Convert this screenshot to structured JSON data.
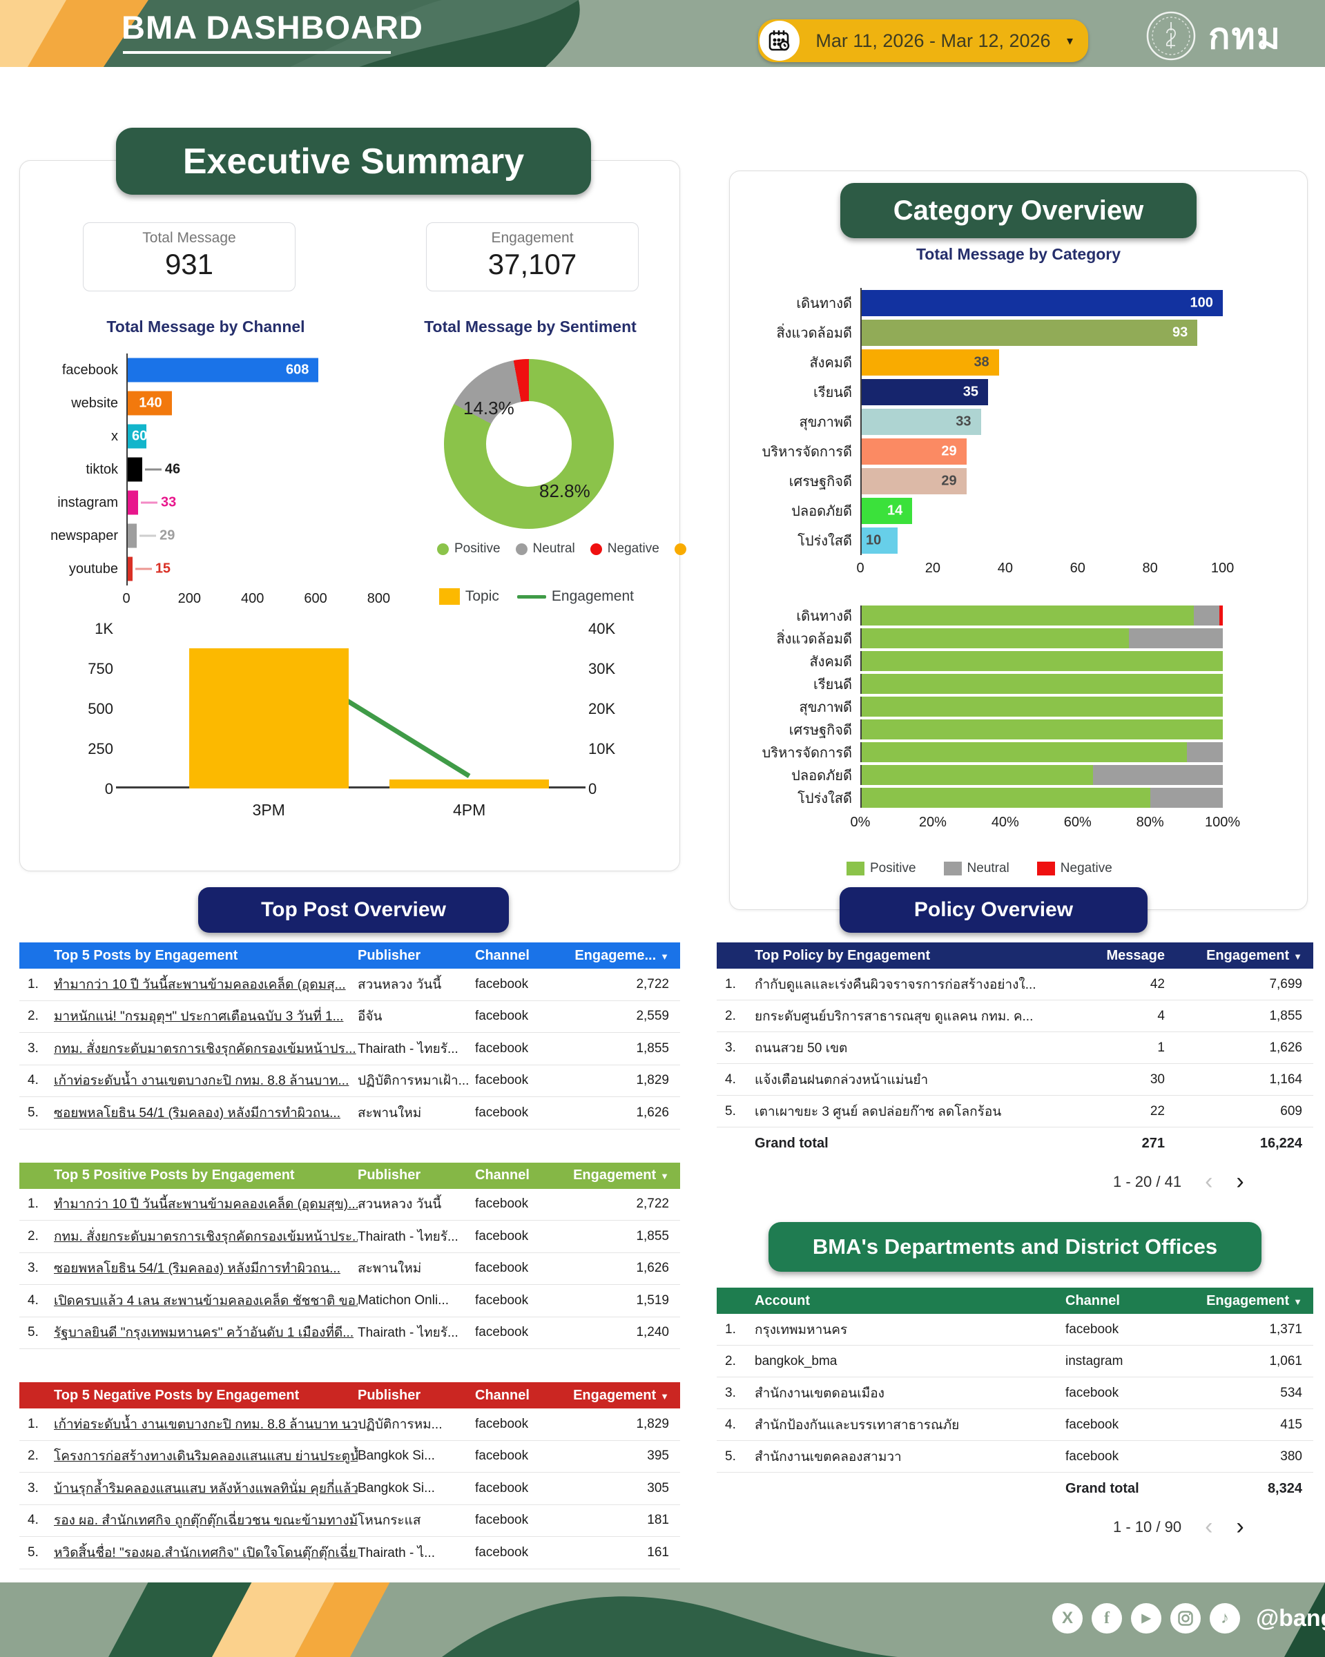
{
  "header": {
    "title": "BMA DASHBOARD",
    "date_range": "Mar 11, 2026 - Mar 12, 2026",
    "logo_text": "กทม"
  },
  "executive_summary": {
    "section_title": "Executive Summary",
    "stats": [
      {
        "label": "Total Message",
        "value": "931"
      },
      {
        "label": "Engagement",
        "value": "37,107"
      }
    ],
    "channel_chart": {
      "type": "bar",
      "title": "Total Message by Channel",
      "categories": [
        "facebook",
        "website",
        "x",
        "tiktok",
        "instagram",
        "newspaper",
        "youtube"
      ],
      "values": [
        608,
        140,
        60,
        46,
        33,
        29,
        15
      ],
      "colors": [
        "#1a73e8",
        "#f2790d",
        "#12b5cb",
        "#000000",
        "#e8168c",
        "#9e9e9e",
        "#d93025"
      ],
      "label_modes": [
        "in-white",
        "in-white",
        "in-white",
        "out",
        "out",
        "out",
        "out"
      ],
      "axis_max": 800,
      "ticks": [
        0,
        200,
        400,
        600,
        800
      ]
    },
    "sentiment_chart": {
      "type": "donut",
      "title": "Total Message by Sentiment",
      "labels": [
        "Positive",
        "Neutral",
        "Negative"
      ],
      "values_pct": [
        82.8,
        14.3,
        2.9
      ],
      "colors": [
        "#8bc34a",
        "#9e9e9e",
        "#ef1010"
      ],
      "shown_labels": {
        "positive": "82.8%",
        "neutral": "14.3%"
      },
      "extra_legend_color": "#f9ab00"
    },
    "hourly_chart": {
      "type": "combo",
      "legend": [
        {
          "label": "Topic",
          "color": "#fcb900",
          "kind": "bar"
        },
        {
          "label": "Engagement",
          "color": "#3f9b47",
          "kind": "line"
        }
      ],
      "x": [
        "3PM",
        "4PM"
      ],
      "topic_values": [
        875,
        56
      ],
      "engagement_values": [
        34000,
        3100
      ],
      "left_max": 1000,
      "right_max": 40000,
      "left_ticks": [
        "1K",
        "750",
        "500",
        "250",
        "0"
      ],
      "right_ticks": [
        "40K",
        "30K",
        "20K",
        "10K",
        "0"
      ]
    }
  },
  "category_overview": {
    "section_title": "Category Overview",
    "bar_chart": {
      "type": "bar",
      "title": "Total Message by Category",
      "categories": [
        "เดินทางดี",
        "สิ่งแวดล้อมดี",
        "สังคมดี",
        "เรียนดี",
        "สุขภาพดี",
        "บริหารจัดการดี",
        "เศรษฐกิจดี",
        "ปลอดภัยดี",
        "โปร่งใสดี"
      ],
      "values": [
        100,
        93,
        38,
        35,
        33,
        29,
        29,
        14,
        10
      ],
      "colors": [
        "#1232a0",
        "#91ab57",
        "#f9ab00",
        "#16256d",
        "#aed4d2",
        "#fb8a63",
        "#dcb9a7",
        "#3be13b",
        "#67cfe9"
      ],
      "label_modes": [
        "in-white",
        "in-white",
        "in-dark",
        "in-white",
        "in-dark",
        "in-white",
        "in-dark",
        "in-white",
        "in-dark"
      ],
      "axis_max": 100,
      "ticks": [
        0,
        20,
        40,
        60,
        80,
        100
      ]
    },
    "stacked_chart": {
      "type": "stacked-bar-100",
      "categories": [
        "เดินทางดี",
        "สิ่งแวดล้อมดี",
        "สังคมดี",
        "เรียนดี",
        "สุขภาพดี",
        "เศรษฐกิจดี",
        "บริหารจัดการดี",
        "ปลอดภัยดี",
        "โปร่งใสดี"
      ],
      "series": [
        {
          "name": "Positive",
          "color": "#8bc34a",
          "values": [
            92,
            74,
            100,
            100,
            100,
            100,
            90,
            64,
            80
          ]
        },
        {
          "name": "Neutral",
          "color": "#9e9e9e",
          "values": [
            7,
            26,
            0,
            0,
            0,
            0,
            10,
            36,
            20
          ]
        },
        {
          "name": "Negative",
          "color": "#ef1010",
          "values": [
            1,
            0,
            0,
            0,
            0,
            0,
            0,
            0,
            0
          ]
        }
      ],
      "ticks": [
        "0%",
        "20%",
        "40%",
        "60%",
        "80%",
        "100%"
      ]
    }
  },
  "top_post_overview": {
    "section_title": "Top Post Overview",
    "tables": [
      {
        "theme": "blue",
        "header": {
          "title": "Top 5 Posts by Engagement",
          "publisher": "Publisher",
          "channel": "Channel",
          "engagement": "Engageme..."
        },
        "rows": [
          {
            "rank": "1.",
            "title": "ทำมากว่า 10 ปี วันนี้สะพานข้ามคลองเคล็ด (อุดมสุ...",
            "publisher": "สวนหลวง วันนี้",
            "channel": "facebook",
            "engagement": "2,722"
          },
          {
            "rank": "2.",
            "title": "มาหนักแน่! \"กรมอุตุฯ\" ประกาศเตือนฉบับ 3 วันที่ 1...",
            "publisher": "อีจัน",
            "channel": "facebook",
            "engagement": "2,559"
          },
          {
            "rank": "3.",
            "title": "กทม. สั่งยกระดับมาตรการเชิงรุกคัดกรองเข้มหน้าปร...",
            "publisher": "Thairath - ไทยรั...",
            "channel": "facebook",
            "engagement": "1,855"
          },
          {
            "rank": "4.",
            "title": "เก้าท่อระดับน้ำ งานเขตบางกะปิ กทม. 8.8 ล้านบาท...",
            "publisher": "ปฏิบัติการหมาเฝ้า...",
            "channel": "facebook",
            "engagement": "1,829"
          },
          {
            "rank": "5.",
            "title": "ซอยพหลโยธิน 54/1 (ริมคลอง) หลังมีการทำผิวถน...",
            "publisher": "สะพานใหม่",
            "channel": "facebook",
            "engagement": "1,626"
          }
        ]
      },
      {
        "theme": "green",
        "header": {
          "title": "Top 5 Positive Posts by Engagement",
          "publisher": "Publisher",
          "channel": "Channel",
          "engagement": "Engagement"
        },
        "rows": [
          {
            "rank": "1.",
            "title": "ทำมากว่า 10 ปี วันนี้สะพานข้ามคลองเคล็ด (อุดมสุข)...",
            "publisher": "สวนหลวง วันนี้",
            "channel": "facebook",
            "engagement": "2,722"
          },
          {
            "rank": "2.",
            "title": "กทม. สั่งยกระดับมาตรการเชิงรุกคัดกรองเข้มหน้าประ...",
            "publisher": "Thairath - ไทยรั...",
            "channel": "facebook",
            "engagement": "1,855"
          },
          {
            "rank": "3.",
            "title": "ซอยพหลโยธิน 54/1 (ริมคลอง) หลังมีการทำผิวถน...",
            "publisher": "สะพานใหม่",
            "channel": "facebook",
            "engagement": "1,626"
          },
          {
            "rank": "4.",
            "title": "เปิดครบแล้ว 4 เลน สะพานข้ามคลองเคล็ด ชัชชาติ ขอ...",
            "publisher": "Matichon Onli...",
            "channel": "facebook",
            "engagement": "1,519"
          },
          {
            "rank": "5.",
            "title": "รัฐบาลยินดี \"กรุงเทพมหานคร\" คว้าอันดับ 1 เมืองที่ดี...",
            "publisher": "Thairath - ไทยรั...",
            "channel": "facebook",
            "engagement": "1,240"
          }
        ]
      },
      {
        "theme": "red",
        "header": {
          "title": "Top 5 Negative Posts by Engagement",
          "publisher": "Publisher",
          "channel": "Channel",
          "engagement": "Engagement"
        },
        "rows": [
          {
            "rank": "1.",
            "title": "เก้าท่อระดับน้ำ งานเขตบางกะปิ กทม. 8.8 ล้านบาท นว...",
            "publisher": "ปฏิบัติการหม...",
            "channel": "facebook",
            "engagement": "1,829"
          },
          {
            "rank": "2.",
            "title": "โครงการก่อสร้างทางเดินริมคลองแสนแสบ ย่านประตูน้ำ",
            "publisher": "Bangkok Si...",
            "channel": "facebook",
            "engagement": "395"
          },
          {
            "rank": "3.",
            "title": "บ้านรุกล้ำริมคลองแสนแสบ หลังห้างแพลทินั่ม คุยกี่แล้ว ...",
            "publisher": "Bangkok Si...",
            "channel": "facebook",
            "engagement": "305"
          },
          {
            "rank": "4.",
            "title": "รอง ผอ. สำนักเทศกิจ ถูกตุ๊กตุ๊กเฉี่ยวชน ขณะข้ามทางม้า...",
            "publisher": "โหนกระแส",
            "channel": "facebook",
            "engagement": "181"
          },
          {
            "rank": "5.",
            "title": "หวิดสิ้นชื่อ! \"รองผอ.สำนักเทศกิจ\" เปิดใจโดนตุ๊กตุ๊กเฉี่ย...",
            "publisher": "Thairath - ไ...",
            "channel": "facebook",
            "engagement": "161"
          }
        ]
      }
    ]
  },
  "policy_overview": {
    "section_title": "Policy Overview",
    "table": {
      "header": {
        "title": "Top Policy by Engagement",
        "message": "Message",
        "engagement": "Engagement"
      },
      "rows": [
        {
          "rank": "1.",
          "policy": "กำกับดูแลและเร่งคืนผิวจราจรการก่อสร้างอย่างใ...",
          "message": "42",
          "engagement": "7,699"
        },
        {
          "rank": "2.",
          "policy": "ยกระดับศูนย์บริการสาธารณสุข ดูแลคน กทม. ค...",
          "message": "4",
          "engagement": "1,855"
        },
        {
          "rank": "3.",
          "policy": "ถนนสวย 50 เขต",
          "message": "1",
          "engagement": "1,626"
        },
        {
          "rank": "4.",
          "policy": "แจ้งเตือนฝนตกล่วงหน้าแม่นยำ",
          "message": "30",
          "engagement": "1,164"
        },
        {
          "rank": "5.",
          "policy": "เตาเผาขยะ 3 ศูนย์ ลดปล่อยก๊าซ ลดโลกร้อน",
          "message": "22",
          "engagement": "609"
        }
      ],
      "grand_total": {
        "label": "Grand total",
        "message": "271",
        "engagement": "16,224"
      },
      "pagination": "1 - 20 / 41"
    }
  },
  "departments": {
    "section_title": "BMA's Departments and District Offices",
    "table": {
      "header": {
        "account": "Account",
        "channel": "Channel",
        "engagement": "Engagement"
      },
      "rows": [
        {
          "rank": "1.",
          "account": "กรุงเทพมหานคร",
          "channel": "facebook",
          "engagement": "1,371"
        },
        {
          "rank": "2.",
          "account": "bangkok_bma",
          "channel": "instagram",
          "engagement": "1,061"
        },
        {
          "rank": "3.",
          "account": "สำนักงานเขตดอนเมือง",
          "channel": "facebook",
          "engagement": "534"
        },
        {
          "rank": "4.",
          "account": "สำนักป้องกันและบรรเทาสาธารณภัย",
          "channel": "facebook",
          "engagement": "415"
        },
        {
          "rank": "5.",
          "account": "สำนักงานเขตคลองสามวา",
          "channel": "facebook",
          "engagement": "380"
        }
      ],
      "grand_total": {
        "label": "Grand total",
        "engagement": "8,324"
      },
      "pagination": "1 - 10 / 90"
    }
  },
  "footer": {
    "handle": "@bangkokbma",
    "icons": [
      "x",
      "facebook",
      "youtube",
      "instagram",
      "tiktok"
    ]
  }
}
